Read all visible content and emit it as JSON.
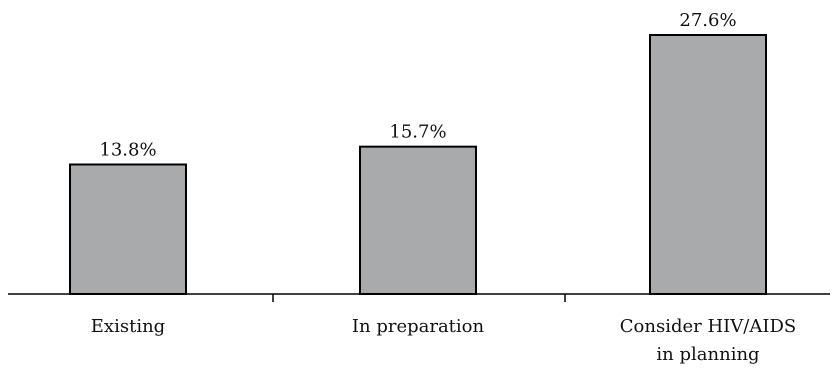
{
  "chart_data": {
    "type": "bar",
    "title": "",
    "xlabel": "",
    "ylabel": "",
    "categories": [
      "Existing",
      "In preparation",
      "Consider HIV/AIDS in planning"
    ],
    "category_lines": [
      [
        "Existing"
      ],
      [
        "In preparation"
      ],
      [
        "Consider HIV/AIDS",
        "in planning"
      ]
    ],
    "values": [
      13.8,
      15.7,
      27.6
    ],
    "value_labels": [
      "13.8%",
      "15.7%",
      "27.6%"
    ],
    "ylim": [
      0,
      30
    ],
    "grid": false,
    "legend": "none",
    "colors": {
      "bar_fill": "#a9aaab",
      "bar_stroke": "#000000"
    }
  }
}
